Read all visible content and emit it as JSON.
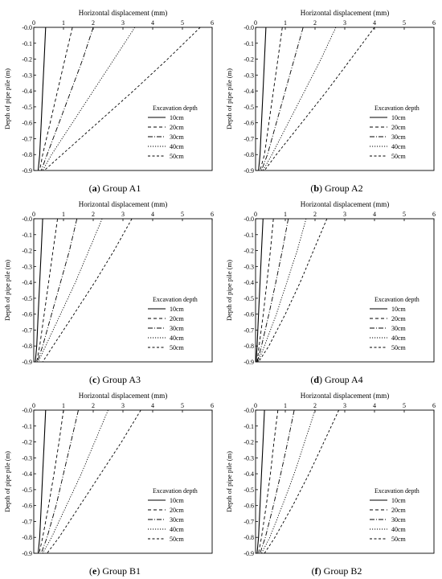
{
  "chart_data": [
    {
      "type": "line",
      "letter": "a",
      "group": "Group A1",
      "xlabel": "Horizontal displacement (mm)",
      "ylabel": "Depth of pipe pile (m)",
      "xlim": [
        0,
        6
      ],
      "ylim": [
        -0.9,
        0.0
      ],
      "xticks": [
        "0",
        "1",
        "2",
        "3",
        "4",
        "5",
        "6"
      ],
      "yticks": [
        "-0.0",
        "-0.1",
        "-0.2",
        "-0.3",
        "-0.4",
        "-0.5",
        "-0.6",
        "-0.7",
        "-0.8",
        "-0.9"
      ],
      "legend": {
        "title": "Excavation depth",
        "position": "bottom-right"
      },
      "series": [
        {
          "name": "10cm",
          "dash": "solid",
          "points": [
            [
              0.4,
              0.0
            ],
            [
              0.35,
              -0.2
            ],
            [
              0.3,
              -0.4
            ],
            [
              0.25,
              -0.6
            ],
            [
              0.2,
              -0.8
            ],
            [
              0.15,
              -0.9
            ]
          ]
        },
        {
          "name": "20cm",
          "dash": "dash",
          "points": [
            [
              1.3,
              0.0
            ],
            [
              1.05,
              -0.2
            ],
            [
              0.8,
              -0.4
            ],
            [
              0.55,
              -0.6
            ],
            [
              0.3,
              -0.8
            ],
            [
              0.2,
              -0.9
            ]
          ]
        },
        {
          "name": "30cm",
          "dash": "dashdot",
          "points": [
            [
              2.0,
              0.0
            ],
            [
              1.65,
              -0.2
            ],
            [
              1.25,
              -0.4
            ],
            [
              0.85,
              -0.6
            ],
            [
              0.45,
              -0.8
            ],
            [
              0.25,
              -0.9
            ]
          ]
        },
        {
          "name": "40cm",
          "dash": "dot",
          "points": [
            [
              3.4,
              0.0
            ],
            [
              2.7,
              -0.2
            ],
            [
              2.0,
              -0.4
            ],
            [
              1.3,
              -0.6
            ],
            [
              0.6,
              -0.8
            ],
            [
              0.3,
              -0.9
            ]
          ]
        },
        {
          "name": "50cm",
          "dash": "dash2",
          "points": [
            [
              5.6,
              0.0
            ],
            [
              4.5,
              -0.2
            ],
            [
              3.35,
              -0.4
            ],
            [
              2.15,
              -0.6
            ],
            [
              0.95,
              -0.8
            ],
            [
              0.35,
              -0.9
            ]
          ]
        }
      ]
    },
    {
      "type": "line",
      "letter": "b",
      "group": "Group A2",
      "xlabel": "Horizontal displacement (mm)",
      "ylabel": "Depth of pipe pile (m)",
      "xlim": [
        0,
        6
      ],
      "ylim": [
        -0.9,
        0.0
      ],
      "xticks": [
        "0",
        "1",
        "2",
        "3",
        "4",
        "5",
        "6"
      ],
      "yticks": [
        "-0.0",
        "-0.1",
        "-0.2",
        "-0.3",
        "-0.4",
        "-0.5",
        "-0.6",
        "-0.7",
        "-0.8",
        "-0.9"
      ],
      "legend": {
        "title": "Excavation depth",
        "position": "bottom-right"
      },
      "series": [
        {
          "name": "10cm",
          "dash": "solid",
          "points": [
            [
              0.35,
              0.0
            ],
            [
              0.3,
              -0.2
            ],
            [
              0.25,
              -0.4
            ],
            [
              0.2,
              -0.6
            ],
            [
              0.15,
              -0.8
            ],
            [
              0.1,
              -0.9
            ]
          ]
        },
        {
          "name": "20cm",
          "dash": "dash",
          "points": [
            [
              0.9,
              0.0
            ],
            [
              0.75,
              -0.2
            ],
            [
              0.6,
              -0.4
            ],
            [
              0.45,
              -0.6
            ],
            [
              0.3,
              -0.8
            ],
            [
              0.15,
              -0.9
            ]
          ]
        },
        {
          "name": "30cm",
          "dash": "dashdot",
          "points": [
            [
              1.6,
              0.0
            ],
            [
              1.3,
              -0.2
            ],
            [
              1.0,
              -0.4
            ],
            [
              0.7,
              -0.6
            ],
            [
              0.4,
              -0.8
            ],
            [
              0.2,
              -0.9
            ]
          ]
        },
        {
          "name": "40cm",
          "dash": "dot",
          "points": [
            [
              2.7,
              0.0
            ],
            [
              2.2,
              -0.2
            ],
            [
              1.65,
              -0.4
            ],
            [
              1.1,
              -0.6
            ],
            [
              0.55,
              -0.8
            ],
            [
              0.25,
              -0.9
            ]
          ]
        },
        {
          "name": "50cm",
          "dash": "dash2",
          "points": [
            [
              4.0,
              0.0
            ],
            [
              3.2,
              -0.2
            ],
            [
              2.4,
              -0.4
            ],
            [
              1.55,
              -0.6
            ],
            [
              0.7,
              -0.8
            ],
            [
              0.3,
              -0.9
            ]
          ]
        }
      ]
    },
    {
      "type": "line",
      "letter": "c",
      "group": "Group A3",
      "xlabel": "Horizontal displacement (mm)",
      "ylabel": "Depth of pipe pile (m)",
      "xlim": [
        0,
        6
      ],
      "ylim": [
        -0.9,
        0.0
      ],
      "xticks": [
        "0",
        "1",
        "2",
        "3",
        "4",
        "5",
        "6"
      ],
      "yticks": [
        "-0.0",
        "-0.1",
        "-0.2",
        "-0.3",
        "-0.4",
        "-0.5",
        "-0.6",
        "-0.7",
        "-0.8",
        "-0.9"
      ],
      "legend": {
        "title": "Excavation depth",
        "position": "bottom-right"
      },
      "series": [
        {
          "name": "10cm",
          "dash": "solid",
          "points": [
            [
              0.3,
              0.0
            ],
            [
              0.25,
              -0.2
            ],
            [
              0.2,
              -0.4
            ],
            [
              0.15,
              -0.6
            ],
            [
              0.1,
              -0.8
            ],
            [
              0.05,
              -0.9
            ]
          ]
        },
        {
          "name": "20cm",
          "dash": "dash",
          "points": [
            [
              0.8,
              0.0
            ],
            [
              0.65,
              -0.2
            ],
            [
              0.5,
              -0.4
            ],
            [
              0.35,
              -0.6
            ],
            [
              0.2,
              -0.8
            ],
            [
              0.1,
              -0.9
            ]
          ]
        },
        {
          "name": "30cm",
          "dash": "dashdot",
          "points": [
            [
              1.45,
              0.0
            ],
            [
              1.2,
              -0.2
            ],
            [
              0.9,
              -0.4
            ],
            [
              0.6,
              -0.6
            ],
            [
              0.3,
              -0.8
            ],
            [
              0.12,
              -0.9
            ]
          ]
        },
        {
          "name": "40cm",
          "dash": "dot",
          "points": [
            [
              2.3,
              0.0
            ],
            [
              1.85,
              -0.2
            ],
            [
              1.4,
              -0.4
            ],
            [
              0.9,
              -0.6
            ],
            [
              0.4,
              -0.8
            ],
            [
              0.15,
              -0.9
            ]
          ]
        },
        {
          "name": "50cm",
          "dash": "dash2",
          "points": [
            [
              3.3,
              0.0
            ],
            [
              2.7,
              -0.2
            ],
            [
              2.05,
              -0.4
            ],
            [
              1.35,
              -0.6
            ],
            [
              0.65,
              -0.8
            ],
            [
              0.3,
              -0.9
            ]
          ]
        }
      ]
    },
    {
      "type": "line",
      "letter": "d",
      "group": "Group A4",
      "xlabel": "Horizontal displacement (mm)",
      "ylabel": "Depth of pipe pile (m)",
      "xlim": [
        0,
        6
      ],
      "ylim": [
        -0.9,
        0.0
      ],
      "xticks": [
        "0",
        "1",
        "2",
        "3",
        "4",
        "5",
        "6"
      ],
      "yticks": [
        "-0.0",
        "-0.1",
        "-0.2",
        "-0.3",
        "-0.4",
        "-0.5",
        "-0.6",
        "-0.7",
        "-0.8",
        "-0.9"
      ],
      "legend": {
        "title": "Excavation depth",
        "position": "bottom-right"
      },
      "series": [
        {
          "name": "10cm",
          "dash": "solid",
          "points": [
            [
              0.25,
              0.0
            ],
            [
              0.2,
              -0.2
            ],
            [
              0.15,
              -0.4
            ],
            [
              0.1,
              -0.6
            ],
            [
              0.05,
              -0.8
            ],
            [
              0.02,
              -0.9
            ]
          ]
        },
        {
          "name": "20cm",
          "dash": "dash",
          "points": [
            [
              0.6,
              0.0
            ],
            [
              0.5,
              -0.2
            ],
            [
              0.38,
              -0.4
            ],
            [
              0.26,
              -0.6
            ],
            [
              0.12,
              -0.8
            ],
            [
              0.05,
              -0.9
            ]
          ]
        },
        {
          "name": "30cm",
          "dash": "dashdot",
          "points": [
            [
              1.1,
              0.0
            ],
            [
              0.9,
              -0.2
            ],
            [
              0.68,
              -0.4
            ],
            [
              0.45,
              -0.6
            ],
            [
              0.2,
              -0.8
            ],
            [
              0.06,
              -0.9
            ]
          ]
        },
        {
          "name": "40cm",
          "dash": "dot",
          "points": [
            [
              1.7,
              0.0
            ],
            [
              1.4,
              -0.2
            ],
            [
              1.05,
              -0.4
            ],
            [
              0.7,
              -0.6
            ],
            [
              0.3,
              -0.8
            ],
            [
              0.08,
              -0.9
            ]
          ]
        },
        {
          "name": "50cm",
          "dash": "dash2",
          "points": [
            [
              2.4,
              0.0
            ],
            [
              1.95,
              -0.2
            ],
            [
              1.5,
              -0.4
            ],
            [
              1.0,
              -0.6
            ],
            [
              0.45,
              -0.8
            ],
            [
              0.1,
              -0.9
            ]
          ]
        }
      ]
    },
    {
      "type": "line",
      "letter": "e",
      "group": "Group B1",
      "xlabel": "Horizontal displacement (mm)",
      "ylabel": "Depth of pipe pile (m)",
      "xlim": [
        0,
        6
      ],
      "ylim": [
        -0.9,
        0.0
      ],
      "xticks": [
        "0",
        "1",
        "2",
        "3",
        "4",
        "5",
        "6"
      ],
      "yticks": [
        "-0.0",
        "-0.1",
        "-0.2",
        "-0.3",
        "-0.4",
        "-0.5",
        "-0.6",
        "-0.7",
        "-0.8",
        "-0.9"
      ],
      "legend": {
        "title": "Excavation depth",
        "position": "bottom-right"
      },
      "series": [
        {
          "name": "10cm",
          "dash": "solid",
          "points": [
            [
              0.4,
              0.0
            ],
            [
              0.35,
              -0.2
            ],
            [
              0.3,
              -0.4
            ],
            [
              0.25,
              -0.6
            ],
            [
              0.2,
              -0.8
            ],
            [
              0.15,
              -0.9
            ]
          ]
        },
        {
          "name": "20cm",
          "dash": "dash",
          "points": [
            [
              1.0,
              0.0
            ],
            [
              0.85,
              -0.2
            ],
            [
              0.68,
              -0.4
            ],
            [
              0.5,
              -0.6
            ],
            [
              0.3,
              -0.8
            ],
            [
              0.18,
              -0.9
            ]
          ]
        },
        {
          "name": "30cm",
          "dash": "dashdot",
          "points": [
            [
              1.5,
              0.0
            ],
            [
              1.25,
              -0.2
            ],
            [
              1.0,
              -0.4
            ],
            [
              0.75,
              -0.6
            ],
            [
              0.45,
              -0.8
            ],
            [
              0.25,
              -0.9
            ]
          ]
        },
        {
          "name": "40cm",
          "dash": "dot",
          "points": [
            [
              2.5,
              0.0
            ],
            [
              2.05,
              -0.2
            ],
            [
              1.6,
              -0.4
            ],
            [
              1.1,
              -0.6
            ],
            [
              0.6,
              -0.8
            ],
            [
              0.3,
              -0.9
            ]
          ]
        },
        {
          "name": "50cm",
          "dash": "dash2",
          "points": [
            [
              3.6,
              0.0
            ],
            [
              2.95,
              -0.2
            ],
            [
              2.25,
              -0.4
            ],
            [
              1.55,
              -0.6
            ],
            [
              0.85,
              -0.8
            ],
            [
              0.45,
              -0.9
            ]
          ]
        }
      ]
    },
    {
      "type": "line",
      "letter": "f",
      "group": "Group B2",
      "xlabel": "Horizontal displacement (mm)",
      "ylabel": "Depth of pipe pile (m)",
      "xlim": [
        0,
        6
      ],
      "ylim": [
        -0.9,
        0.0
      ],
      "xticks": [
        "0",
        "1",
        "2",
        "3",
        "4",
        "5",
        "6"
      ],
      "yticks": [
        "-0.0",
        "-0.1",
        "-0.2",
        "-0.3",
        "-0.4",
        "-0.5",
        "-0.6",
        "-0.7",
        "-0.8",
        "-0.9"
      ],
      "legend": {
        "title": "Excavation depth",
        "position": "bottom-right"
      },
      "series": [
        {
          "name": "10cm",
          "dash": "solid",
          "points": [
            [
              0.3,
              0.0
            ],
            [
              0.25,
              -0.2
            ],
            [
              0.2,
              -0.4
            ],
            [
              0.15,
              -0.6
            ],
            [
              0.1,
              -0.8
            ],
            [
              0.05,
              -0.9
            ]
          ]
        },
        {
          "name": "20cm",
          "dash": "dash",
          "points": [
            [
              0.75,
              0.0
            ],
            [
              0.62,
              -0.2
            ],
            [
              0.5,
              -0.4
            ],
            [
              0.36,
              -0.6
            ],
            [
              0.2,
              -0.8
            ],
            [
              0.1,
              -0.9
            ]
          ]
        },
        {
          "name": "30cm",
          "dash": "dashdot",
          "points": [
            [
              1.3,
              0.0
            ],
            [
              1.08,
              -0.2
            ],
            [
              0.85,
              -0.4
            ],
            [
              0.6,
              -0.6
            ],
            [
              0.33,
              -0.8
            ],
            [
              0.15,
              -0.9
            ]
          ]
        },
        {
          "name": "40cm",
          "dash": "dot",
          "points": [
            [
              2.0,
              0.0
            ],
            [
              1.65,
              -0.2
            ],
            [
              1.3,
              -0.4
            ],
            [
              0.9,
              -0.6
            ],
            [
              0.48,
              -0.8
            ],
            [
              0.2,
              -0.9
            ]
          ]
        },
        {
          "name": "50cm",
          "dash": "dash2",
          "points": [
            [
              2.8,
              0.0
            ],
            [
              2.3,
              -0.2
            ],
            [
              1.8,
              -0.4
            ],
            [
              1.25,
              -0.6
            ],
            [
              0.65,
              -0.8
            ],
            [
              0.3,
              -0.9
            ]
          ]
        }
      ]
    }
  ]
}
